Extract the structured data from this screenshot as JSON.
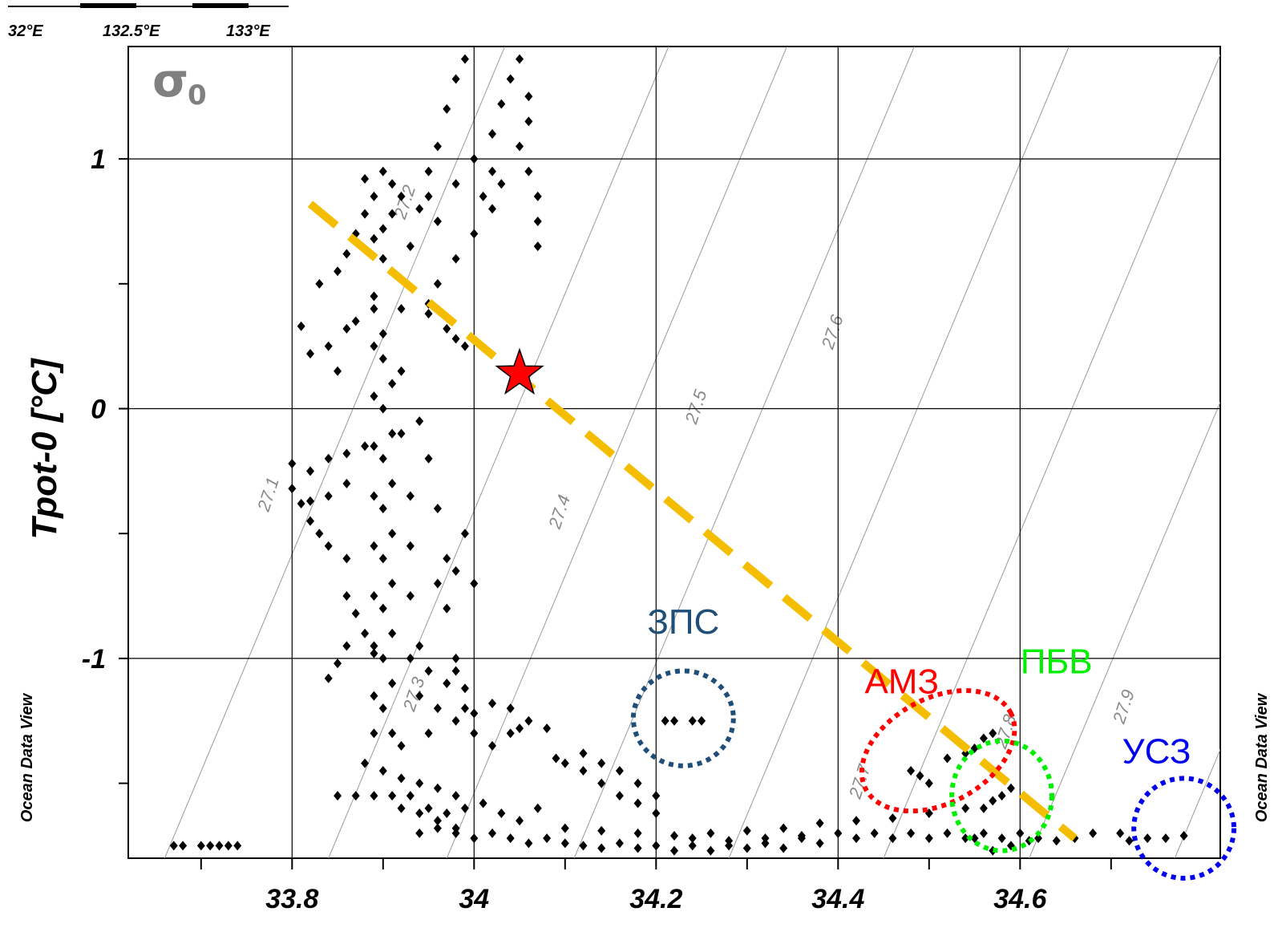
{
  "map_fragment": {
    "lon_labels": [
      "32°E",
      "132.5°E",
      "133°E"
    ]
  },
  "watermark": "Ocean Data View",
  "sigma_symbol": "σ",
  "sigma_subscript": "0",
  "chart_data": {
    "type": "scatter",
    "xlabel": "",
    "ylabel": "Tpot-0 [°C]",
    "xlim": [
      33.62,
      34.82
    ],
    "ylim": [
      -1.8,
      1.45
    ],
    "x_ticks": [
      33.8,
      34,
      34.2,
      34.4,
      34.6
    ],
    "x_tick_labels": [
      "33.8",
      "34",
      "34.2",
      "34.4",
      "34.6"
    ],
    "x_minor_ticks": [
      33.7,
      33.9,
      34.1,
      34.3,
      34.5,
      34.7
    ],
    "y_ticks": [
      -1,
      0,
      1
    ],
    "y_tick_labels": [
      "-1",
      "0",
      "1"
    ],
    "y_minor_ticks": [
      -1.5,
      -0.5,
      0.5
    ],
    "grid": true,
    "isopycnals": {
      "values": [
        27.1,
        27.2,
        27.3,
        27.4,
        27.5,
        27.6,
        27.7,
        27.8,
        27.9
      ],
      "labels": [
        "27.1",
        "27.2",
        "27.3",
        "27.4",
        "27.5",
        "27.6",
        "27.7",
        "27.8",
        "27.9"
      ],
      "label_points": [
        [
          33.78,
          -0.35
        ],
        [
          33.93,
          0.82
        ],
        [
          33.94,
          -1.15
        ],
        [
          34.1,
          -0.42
        ],
        [
          34.25,
          0.0
        ],
        [
          34.4,
          0.3
        ],
        [
          34.43,
          -1.5
        ],
        [
          34.59,
          -1.3
        ],
        [
          34.72,
          -1.2
        ]
      ]
    },
    "series": [
      {
        "points": [
          [
            33.67,
            -1.75
          ],
          [
            33.68,
            -1.75
          ],
          [
            33.7,
            -1.75
          ],
          [
            33.71,
            -1.75
          ],
          [
            33.72,
            -1.75
          ],
          [
            33.73,
            -1.75
          ],
          [
            33.74,
            -1.75
          ],
          [
            33.8,
            -0.22
          ],
          [
            33.8,
            -0.32
          ],
          [
            33.81,
            -0.38
          ],
          [
            33.82,
            -0.37
          ],
          [
            33.84,
            -0.35
          ],
          [
            33.86,
            -0.3
          ],
          [
            33.82,
            -0.25
          ],
          [
            33.84,
            -0.2
          ],
          [
            33.86,
            -0.18
          ],
          [
            33.88,
            -0.15
          ],
          [
            33.81,
            0.33
          ],
          [
            33.82,
            0.22
          ],
          [
            33.84,
            0.25
          ],
          [
            33.86,
            0.32
          ],
          [
            33.87,
            0.35
          ],
          [
            33.85,
            0.15
          ],
          [
            33.83,
            0.5
          ],
          [
            33.85,
            0.55
          ],
          [
            33.86,
            0.62
          ],
          [
            33.87,
            0.7
          ],
          [
            33.88,
            0.78
          ],
          [
            33.89,
            0.85
          ],
          [
            33.88,
            0.92
          ],
          [
            33.9,
            0.95
          ],
          [
            33.91,
            0.9
          ],
          [
            33.92,
            0.85
          ],
          [
            33.91,
            0.78
          ],
          [
            33.9,
            0.72
          ],
          [
            33.89,
            0.68
          ],
          [
            33.9,
            0.6
          ],
          [
            33.91,
            0.55
          ],
          [
            33.93,
            0.65
          ],
          [
            33.94,
            0.8
          ],
          [
            33.95,
            0.95
          ],
          [
            33.96,
            1.05
          ],
          [
            33.97,
            1.2
          ],
          [
            33.98,
            1.32
          ],
          [
            33.99,
            1.4
          ],
          [
            33.95,
            0.85
          ],
          [
            33.96,
            0.75
          ],
          [
            33.98,
            0.9
          ],
          [
            34.0,
            1.0
          ],
          [
            34.02,
            0.95
          ],
          [
            34.01,
            0.85
          ],
          [
            34.02,
            1.1
          ],
          [
            34.03,
            1.22
          ],
          [
            34.04,
            1.32
          ],
          [
            34.05,
            1.4
          ],
          [
            34.06,
            1.25
          ],
          [
            34.06,
            1.15
          ],
          [
            34.05,
            1.05
          ],
          [
            34.06,
            0.95
          ],
          [
            34.07,
            0.85
          ],
          [
            34.07,
            0.75
          ],
          [
            34.07,
            0.65
          ],
          [
            34.03,
            0.9
          ],
          [
            34.02,
            0.8
          ],
          [
            34.0,
            0.7
          ],
          [
            33.98,
            0.6
          ],
          [
            33.96,
            0.5
          ],
          [
            33.95,
            0.42
          ],
          [
            33.95,
            0.38
          ],
          [
            33.97,
            0.32
          ],
          [
            33.98,
            0.28
          ],
          [
            33.99,
            0.25
          ],
          [
            33.89,
            0.4
          ],
          [
            33.9,
            0.3
          ],
          [
            33.9,
            0.2
          ],
          [
            33.91,
            0.1
          ],
          [
            33.9,
            0.0
          ],
          [
            33.91,
            -0.1
          ],
          [
            33.9,
            -0.2
          ],
          [
            33.91,
            -0.3
          ],
          [
            33.9,
            -0.4
          ],
          [
            33.91,
            -0.5
          ],
          [
            33.9,
            -0.6
          ],
          [
            33.91,
            -0.7
          ],
          [
            33.9,
            -0.8
          ],
          [
            33.91,
            -0.9
          ],
          [
            33.9,
            -1.0
          ],
          [
            33.91,
            -1.1
          ],
          [
            33.9,
            -1.2
          ],
          [
            33.91,
            -1.3
          ],
          [
            33.92,
            -1.35
          ],
          [
            33.89,
            0.45
          ],
          [
            33.89,
            0.25
          ],
          [
            33.89,
            0.05
          ],
          [
            33.89,
            -0.15
          ],
          [
            33.89,
            -0.35
          ],
          [
            33.89,
            -0.55
          ],
          [
            33.89,
            -0.75
          ],
          [
            33.89,
            -0.95
          ],
          [
            33.89,
            -1.15
          ],
          [
            33.89,
            -1.3
          ],
          [
            33.92,
            0.4
          ],
          [
            33.92,
            0.15
          ],
          [
            33.92,
            -0.1
          ],
          [
            33.93,
            -0.35
          ],
          [
            33.93,
            -0.55
          ],
          [
            33.93,
            -0.75
          ],
          [
            33.94,
            -0.95
          ],
          [
            33.94,
            -1.15
          ],
          [
            33.95,
            -1.3
          ],
          [
            33.94,
            -0.05
          ],
          [
            33.95,
            -0.2
          ],
          [
            33.96,
            -0.4
          ],
          [
            33.97,
            -0.6
          ],
          [
            33.97,
            -0.8
          ],
          [
            33.98,
            -1.0
          ],
          [
            33.99,
            -1.2
          ],
          [
            33.96,
            -0.7
          ],
          [
            33.98,
            -0.65
          ],
          [
            34.0,
            -0.7
          ],
          [
            33.99,
            -0.5
          ],
          [
            33.82,
            -0.45
          ],
          [
            33.83,
            -0.5
          ],
          [
            33.84,
            -0.55
          ],
          [
            33.86,
            -0.6
          ],
          [
            33.86,
            -0.75
          ],
          [
            33.87,
            -0.82
          ],
          [
            33.88,
            -0.9
          ],
          [
            33.89,
            -0.98
          ],
          [
            33.86,
            -0.95
          ],
          [
            33.85,
            -1.02
          ],
          [
            33.84,
            -1.08
          ],
          [
            33.93,
            -1.0
          ],
          [
            33.95,
            -1.05
          ],
          [
            33.97,
            -1.1
          ],
          [
            33.99,
            -1.12
          ],
          [
            33.98,
            -1.05
          ],
          [
            33.96,
            -1.2
          ],
          [
            33.98,
            -1.25
          ],
          [
            34.0,
            -1.22
          ],
          [
            34.02,
            -1.18
          ],
          [
            34.04,
            -1.2
          ],
          [
            34.06,
            -1.25
          ],
          [
            34.0,
            -1.3
          ],
          [
            34.02,
            -1.35
          ],
          [
            34.04,
            -1.3
          ],
          [
            34.05,
            -1.28
          ],
          [
            34.08,
            -1.28
          ],
          [
            34.09,
            -1.4
          ],
          [
            34.1,
            -1.42
          ],
          [
            34.12,
            -1.38
          ],
          [
            34.14,
            -1.42
          ],
          [
            34.16,
            -1.45
          ],
          [
            34.18,
            -1.5
          ],
          [
            34.2,
            -1.55
          ],
          [
            34.12,
            -1.45
          ],
          [
            34.14,
            -1.5
          ],
          [
            34.16,
            -1.55
          ],
          [
            34.18,
            -1.58
          ],
          [
            34.2,
            -1.62
          ],
          [
            33.85,
            -1.55
          ],
          [
            33.87,
            -1.55
          ],
          [
            33.89,
            -1.55
          ],
          [
            33.91,
            -1.55
          ],
          [
            33.93,
            -1.55
          ],
          [
            33.95,
            -1.6
          ],
          [
            33.97,
            -1.62
          ],
          [
            33.99,
            -1.6
          ],
          [
            34.01,
            -1.58
          ],
          [
            34.03,
            -1.62
          ],
          [
            34.05,
            -1.65
          ],
          [
            34.07,
            -1.6
          ],
          [
            33.88,
            -1.42
          ],
          [
            33.9,
            -1.45
          ],
          [
            33.92,
            -1.48
          ],
          [
            33.94,
            -1.5
          ],
          [
            33.96,
            -1.52
          ],
          [
            33.98,
            -1.55
          ],
          [
            33.92,
            -1.6
          ],
          [
            33.94,
            -1.62
          ],
          [
            33.96,
            -1.65
          ],
          [
            33.98,
            -1.68
          ],
          [
            33.94,
            -1.7
          ],
          [
            33.96,
            -1.68
          ],
          [
            33.98,
            -1.7
          ],
          [
            34.0,
            -1.72
          ],
          [
            34.02,
            -1.7
          ],
          [
            34.04,
            -1.72
          ],
          [
            34.06,
            -1.74
          ],
          [
            34.08,
            -1.72
          ],
          [
            34.1,
            -1.74
          ],
          [
            34.12,
            -1.75
          ],
          [
            34.14,
            -1.76
          ],
          [
            34.16,
            -1.74
          ],
          [
            34.18,
            -1.76
          ],
          [
            34.2,
            -1.75
          ],
          [
            34.22,
            -1.77
          ],
          [
            34.24,
            -1.75
          ],
          [
            34.26,
            -1.77
          ],
          [
            34.28,
            -1.75
          ],
          [
            34.3,
            -1.76
          ],
          [
            34.32,
            -1.74
          ],
          [
            34.34,
            -1.76
          ],
          [
            34.36,
            -1.72
          ],
          [
            34.38,
            -1.74
          ],
          [
            34.4,
            -1.7
          ],
          [
            34.42,
            -1.72
          ],
          [
            34.44,
            -1.7
          ],
          [
            34.46,
            -1.72
          ],
          [
            34.48,
            -1.7
          ],
          [
            34.5,
            -1.72
          ],
          [
            34.52,
            -1.7
          ],
          [
            34.54,
            -1.72
          ],
          [
            34.56,
            -1.7
          ],
          [
            34.58,
            -1.72
          ],
          [
            34.6,
            -1.7
          ],
          [
            34.1,
            -1.68
          ],
          [
            34.14,
            -1.69
          ],
          [
            34.18,
            -1.7
          ],
          [
            34.22,
            -1.71
          ],
          [
            34.26,
            -1.7
          ],
          [
            34.3,
            -1.69
          ],
          [
            34.34,
            -1.68
          ],
          [
            34.38,
            -1.66
          ],
          [
            34.42,
            -1.65
          ],
          [
            34.46,
            -1.64
          ],
          [
            34.5,
            -1.62
          ],
          [
            34.54,
            -1.6
          ],
          [
            34.24,
            -1.72
          ],
          [
            34.28,
            -1.73
          ],
          [
            34.32,
            -1.72
          ],
          [
            34.36,
            -1.71
          ],
          [
            34.62,
            -1.72
          ],
          [
            34.64,
            -1.73
          ],
          [
            34.66,
            -1.72
          ],
          [
            34.68,
            -1.7
          ],
          [
            34.21,
            -1.25
          ],
          [
            34.22,
            -1.25
          ],
          [
            34.24,
            -1.25
          ],
          [
            34.25,
            -1.25
          ],
          [
            34.48,
            -1.45
          ],
          [
            34.49,
            -1.47
          ],
          [
            34.5,
            -1.5
          ],
          [
            34.52,
            -1.4
          ],
          [
            34.54,
            -1.38
          ],
          [
            34.55,
            -1.36
          ],
          [
            34.56,
            -1.32
          ],
          [
            34.57,
            -1.3
          ],
          [
            34.56,
            -1.6
          ],
          [
            34.57,
            -1.57
          ],
          [
            34.58,
            -1.55
          ],
          [
            34.59,
            -1.52
          ],
          [
            34.55,
            -1.72
          ],
          [
            34.57,
            -1.77
          ],
          [
            34.59,
            -1.75
          ],
          [
            34.61,
            -1.73
          ],
          [
            34.71,
            -1.7
          ],
          [
            34.72,
            -1.73
          ],
          [
            34.74,
            -1.72
          ],
          [
            34.76,
            -1.72
          ],
          [
            34.78,
            -1.71
          ]
        ]
      }
    ],
    "overlays": {
      "dashed_line": {
        "from": [
          33.82,
          0.82
        ],
        "to": [
          34.66,
          -1.72
        ],
        "color": "#f5bd00"
      },
      "star": {
        "x": 34.05,
        "y": 0.14,
        "color": "#ff0000"
      },
      "regions": [
        {
          "label": "ЗПС",
          "color": "#1f4e79",
          "center": [
            34.23,
            -1.24
          ],
          "radius": [
            0.055,
            0.19
          ],
          "label_at": [
            34.23,
            -0.9
          ]
        },
        {
          "label": "АМЗ",
          "color": "#ff0000",
          "center": [
            34.51,
            -1.37
          ],
          "radius": [
            0.09,
            0.21
          ],
          "label_at": [
            34.47,
            -1.14
          ],
          "rotate": -28
        },
        {
          "label": "ПБВ",
          "color": "#00ee00",
          "center": [
            34.58,
            -1.55
          ],
          "radius": [
            0.055,
            0.22
          ],
          "label_at": [
            34.64,
            -1.06
          ]
        },
        {
          "label": "УСЗ",
          "color": "#0000ee",
          "center": [
            34.78,
            -1.68
          ],
          "radius": [
            0.055,
            0.2
          ],
          "label_at": [
            34.75,
            -1.42
          ]
        }
      ]
    }
  }
}
